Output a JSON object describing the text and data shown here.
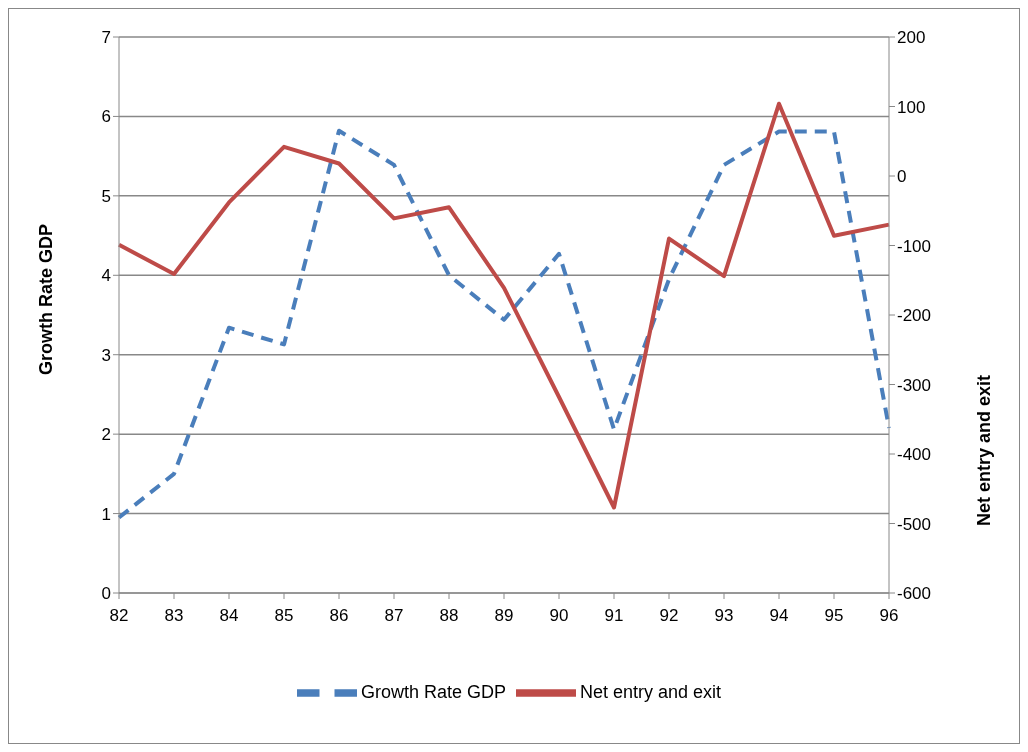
{
  "chart_data": {
    "type": "line",
    "categories": [
      "82",
      "83",
      "84",
      "85",
      "86",
      "87",
      "88",
      "89",
      "90",
      "91",
      "92",
      "93",
      "94",
      "95",
      "96"
    ],
    "series": [
      {
        "name": "Growth Rate GDP",
        "color": "#4a7ebb",
        "line_style": "dashed",
        "values": [
          0.95,
          1.5,
          3.34,
          3.13,
          5.82,
          5.39,
          4.0,
          3.44,
          4.27,
          2.06,
          3.95,
          5.39,
          5.81,
          5.81,
          2.08
        ]
      },
      {
        "name": "Net entry and exit",
        "color": "#be4b48",
        "line_style": "solid",
        "axis": "y2",
        "values": [
          -99,
          -141,
          -38,
          42,
          18,
          -61,
          -45,
          -161,
          -318,
          -477,
          -90,
          -144,
          104,
          -86,
          -70
        ]
      }
    ],
    "ylabel": "Growth Rate GDP",
    "y2label": "Net entry and exit",
    "ylim": [
      0,
      7
    ],
    "yticks": [
      0,
      1,
      2,
      3,
      4,
      5,
      6,
      7
    ],
    "y2lim": [
      -600,
      200
    ],
    "y2ticks": [
      -600,
      -500,
      -400,
      -300,
      -200,
      -100,
      0,
      100,
      200
    ],
    "grid": "y",
    "legend": "bottom",
    "marker": "none"
  }
}
